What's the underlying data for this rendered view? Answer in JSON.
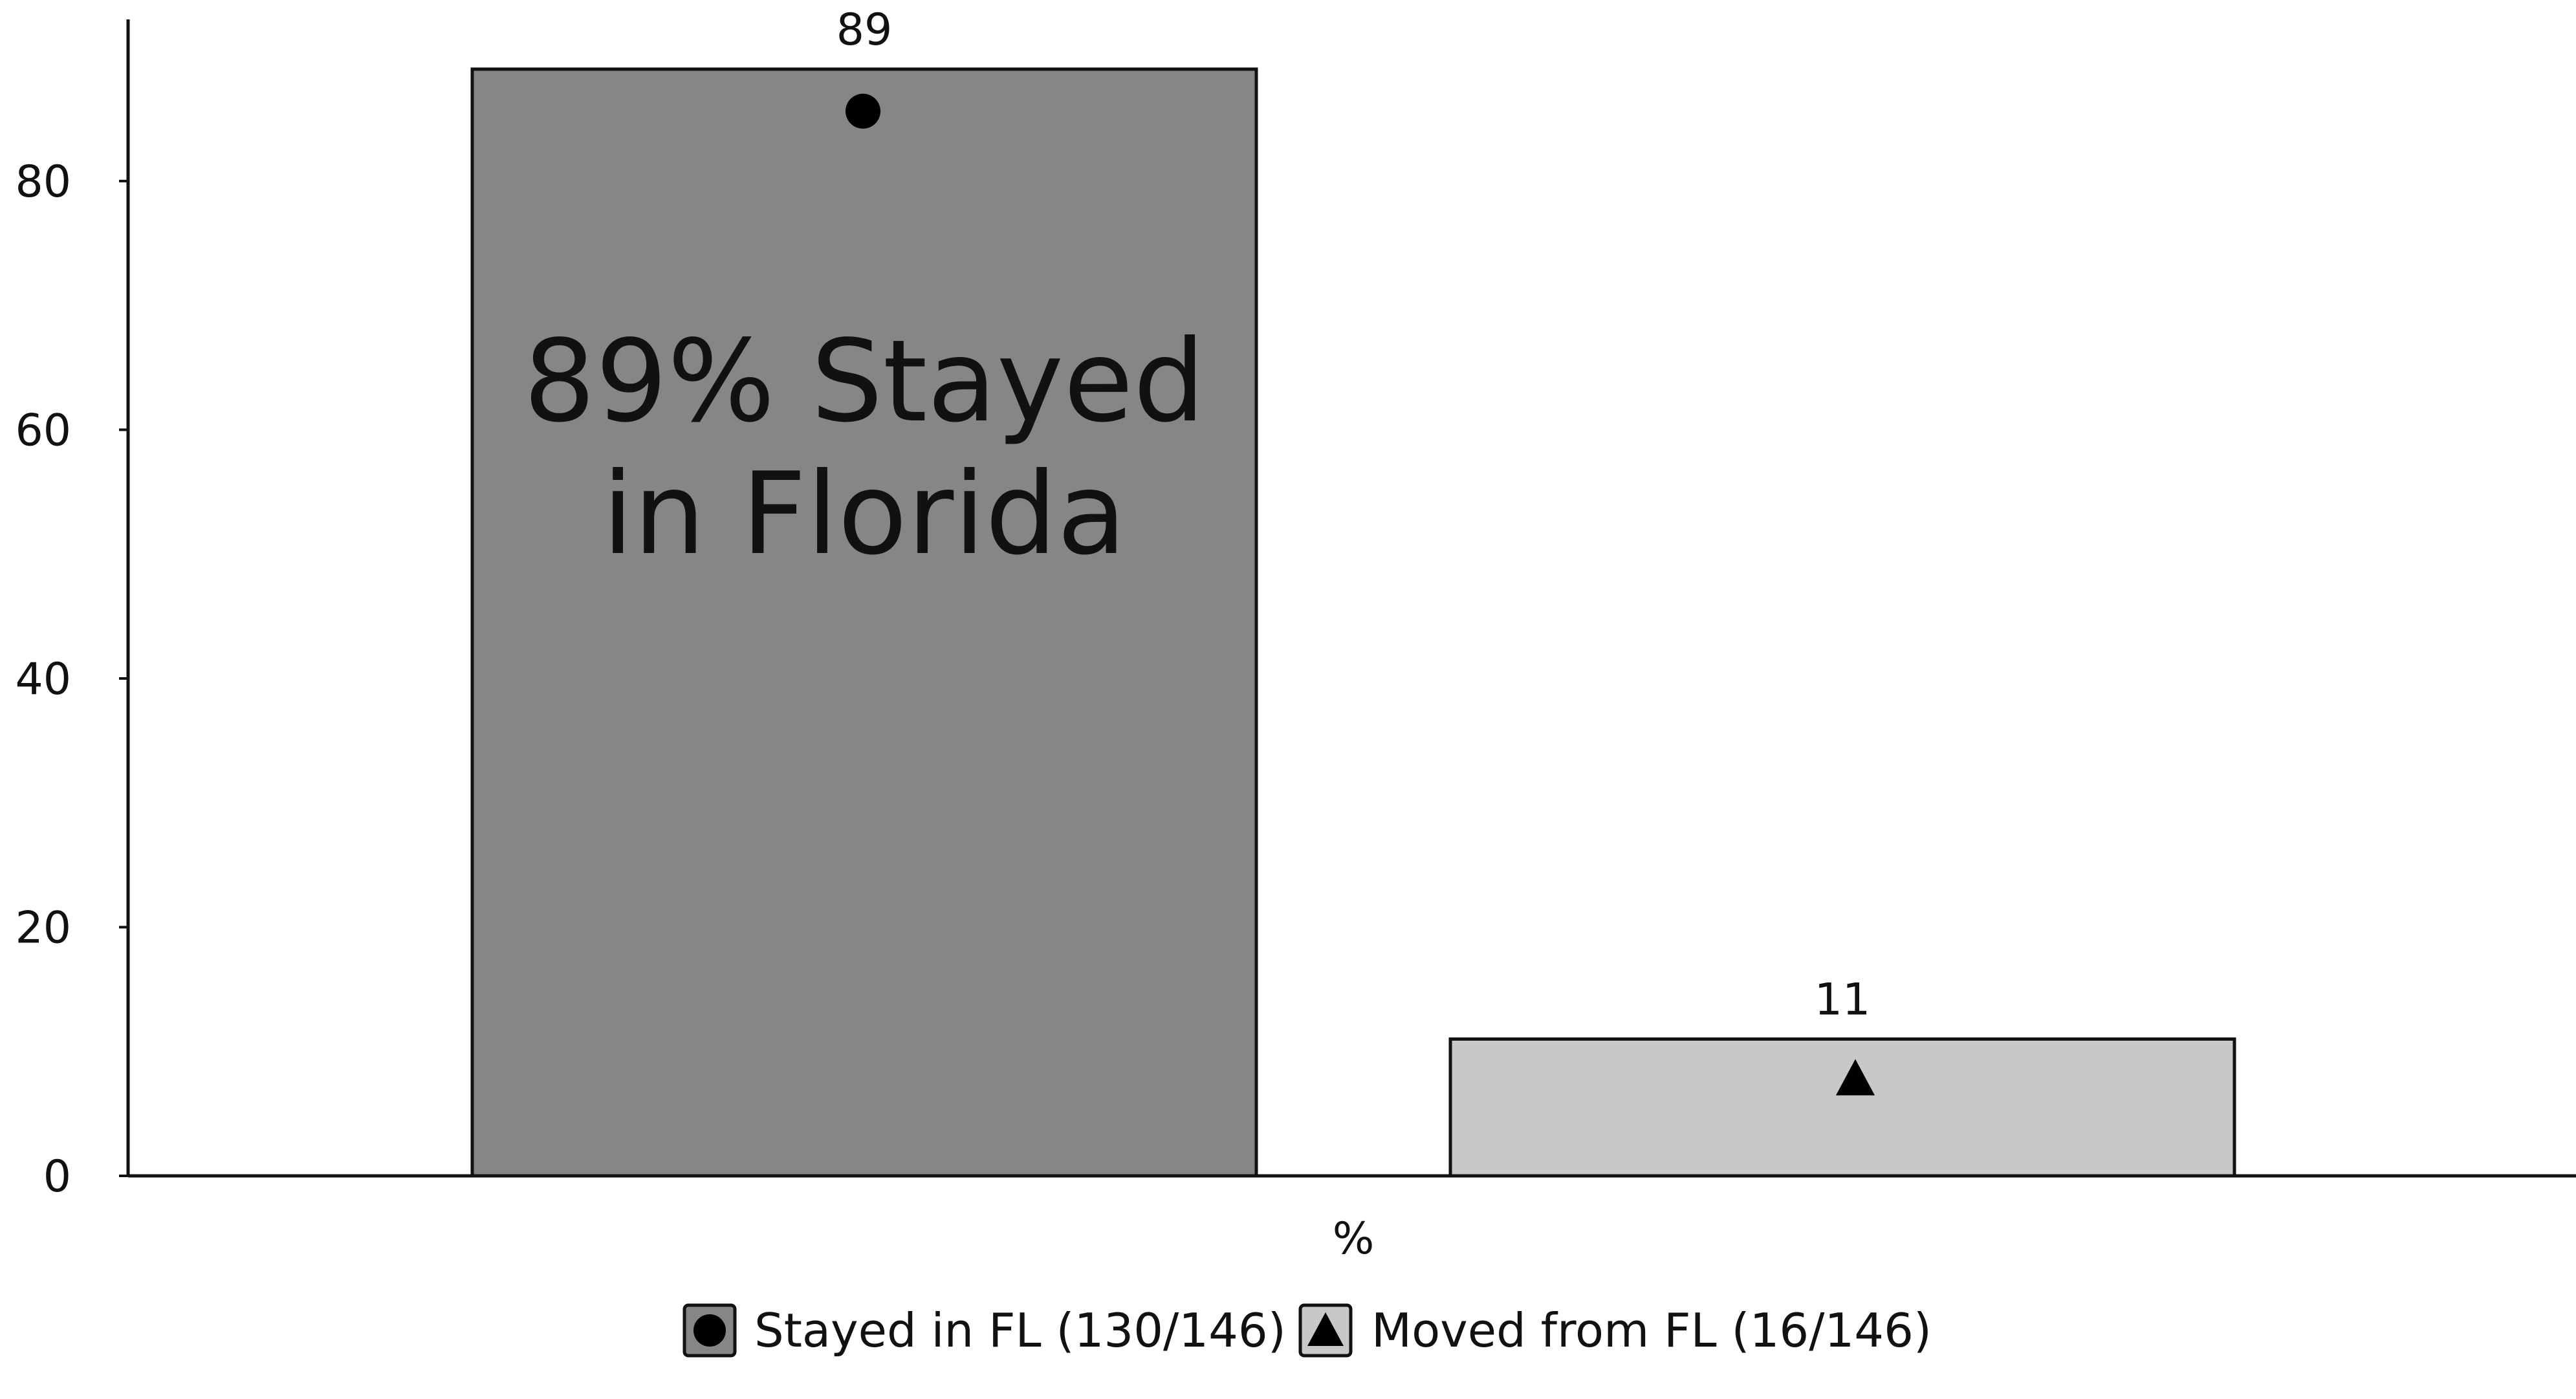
{
  "chart_data": {
    "type": "bar",
    "categories": [
      "Stayed in FL (130/146)",
      "Moved from FL (16/146)"
    ],
    "values": [
      89,
      11
    ],
    "data_labels": [
      "89",
      "11"
    ],
    "markers": [
      "circle",
      "triangle"
    ],
    "colors": [
      "#868686",
      "#c8c8c8"
    ],
    "bar_outline_color": "#111111",
    "xlabel": "%",
    "ylabel": "",
    "ylim": [
      0,
      93
    ],
    "yticks": [
      0,
      20,
      40,
      60,
      80
    ],
    "ytick_labels": [
      "0",
      "20",
      "40",
      "60",
      "80"
    ],
    "grid": false,
    "legend_placement": "bottom-center",
    "legend": [
      {
        "label": "Stayed in FL (130/146)",
        "color": "#868686",
        "marker": "circle"
      },
      {
        "label": "Moved from FL (16/146)",
        "color": "#c8c8c8",
        "marker": "triangle"
      }
    ],
    "annotation": {
      "lines": [
        "89% Stayed",
        "in Florida"
      ],
      "series_index": 0
    }
  }
}
